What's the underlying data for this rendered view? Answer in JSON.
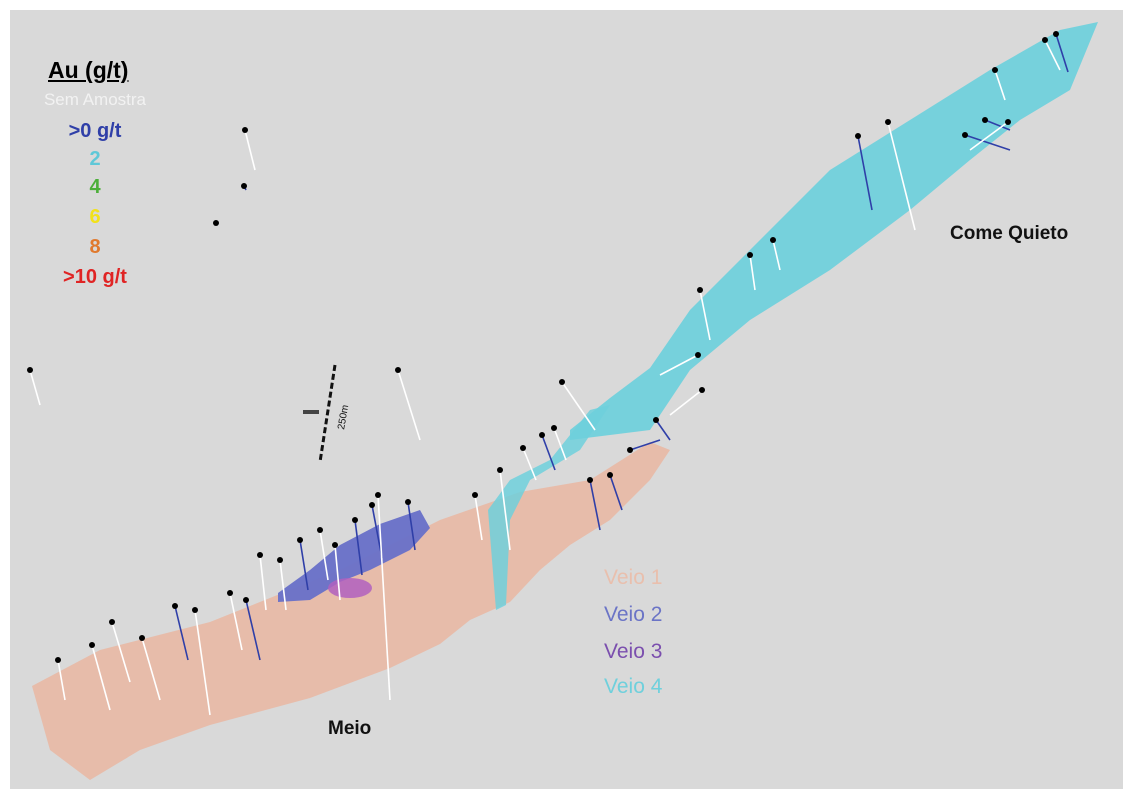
{
  "legend": {
    "title": "Au (g/t)",
    "items": [
      {
        "label": "Sem Amostra",
        "color": "#f2f2f2"
      },
      {
        "label": ">0 g/t",
        "color": "#2f3fa8"
      },
      {
        "label": "2",
        "color": "#5fc8d8"
      },
      {
        "label": "4",
        "color": "#4caf3a"
      },
      {
        "label": "6",
        "color": "#f2e21a"
      },
      {
        "label": "8",
        "color": "#e07a2e"
      },
      {
        "label": ">10 g/t",
        "color": "#e02424"
      }
    ]
  },
  "veins": [
    {
      "label": "Veio 1",
      "color": "#e9bfad"
    },
    {
      "label": "Veio 2",
      "color": "#6b74c6"
    },
    {
      "label": "Veio 3",
      "color": "#7b4fae"
    },
    {
      "label": "Veio 4",
      "color": "#6fd0dc"
    }
  ],
  "areas": {
    "meio": "Meio",
    "come_quieto": "Come Quieto"
  },
  "scale_bar": {
    "label": "250m"
  }
}
